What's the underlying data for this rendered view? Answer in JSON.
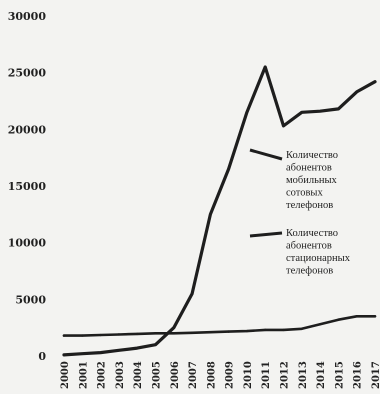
{
  "chart_data": {
    "type": "line",
    "title": "",
    "xlabel": "",
    "ylabel": "",
    "x": [
      "2000",
      "2001",
      "2002",
      "2003",
      "2004",
      "2005",
      "2006",
      "2007",
      "2008",
      "2009",
      "2010",
      "2011",
      "2012",
      "2013",
      "2014",
      "2015",
      "2016",
      "2017"
    ],
    "ylim": [
      0,
      30000
    ],
    "yticks": [
      0,
      5000,
      10000,
      15000,
      20000,
      25000,
      30000
    ],
    "grid": false,
    "legend_position": "right",
    "series": [
      {
        "name": "Количество абонентов мобильных сотовых телефонов",
        "values": [
          100,
          200,
          300,
          500,
          700,
          1000,
          2500,
          5500,
          12500,
          16500,
          21500,
          25500,
          20300,
          21500,
          21600,
          21800,
          23300,
          24200
        ],
        "color": "#1e1e1e"
      },
      {
        "name": "Количество абонентов стационарных телефонов",
        "values": [
          1800,
          1800,
          1850,
          1900,
          1950,
          2000,
          2000,
          2050,
          2100,
          2150,
          2200,
          2300,
          2300,
          2400,
          2800,
          3200,
          3500,
          3500
        ],
        "color": "#1e1e1e"
      }
    ]
  }
}
